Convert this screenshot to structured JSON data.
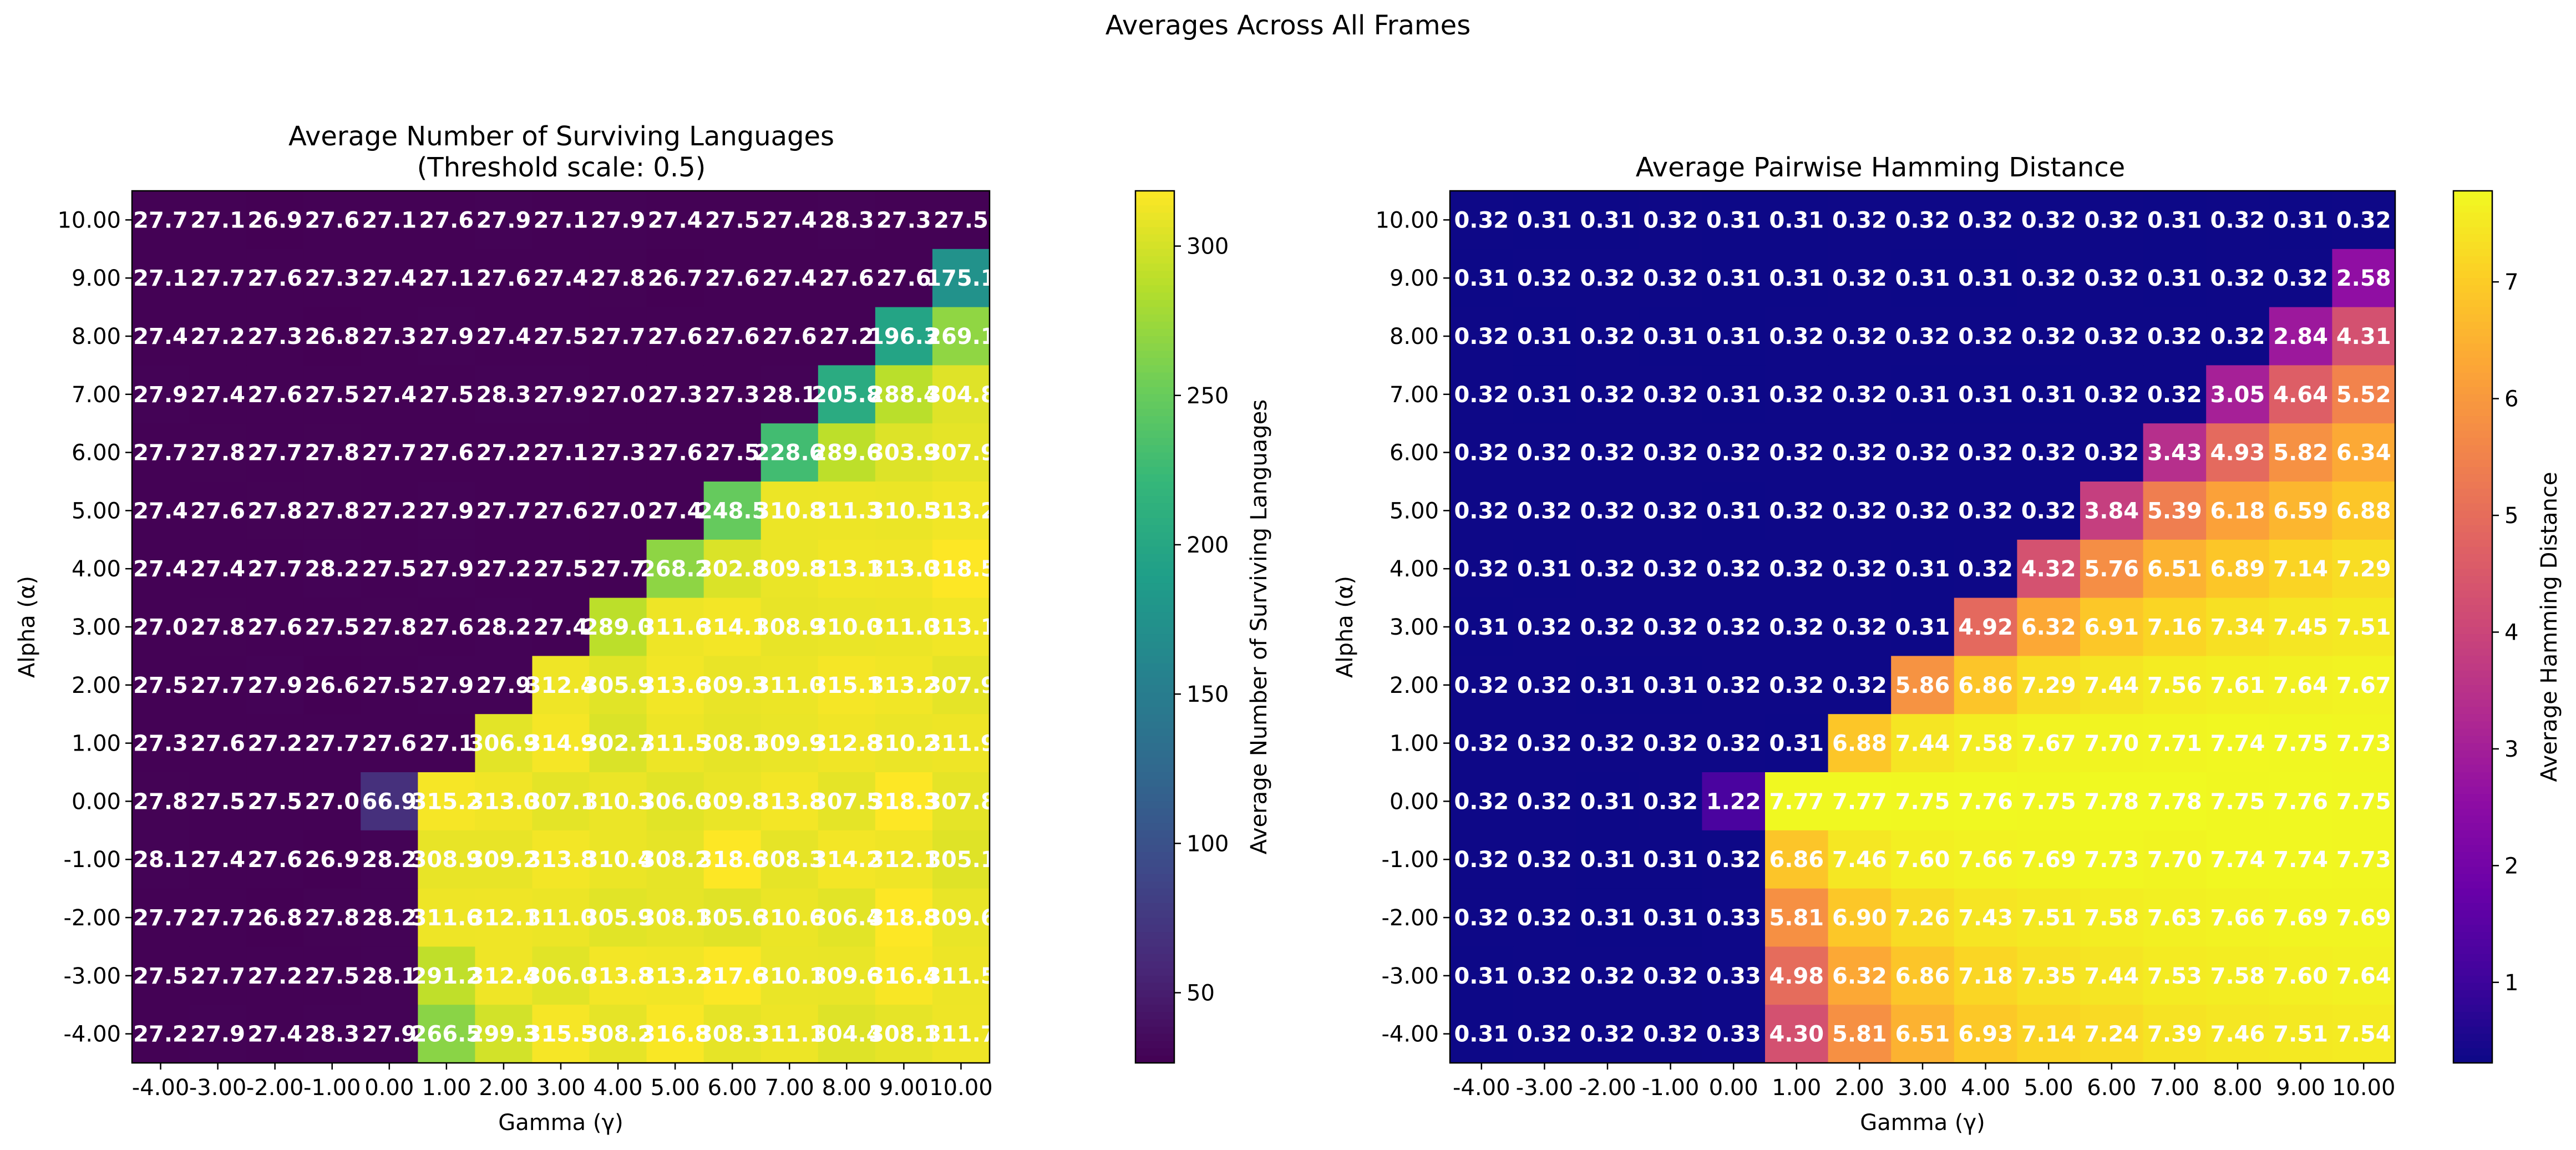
{
  "suptitle": "Averages Across All Frames",
  "chart_data": [
    {
      "type": "heatmap",
      "title": "Average Number of Surviving Languages",
      "subtitle": "(Threshold scale: 0.5)",
      "xlabel": "Gamma (γ)",
      "ylabel": "Alpha (α)",
      "colorbar_label": "Average Number of Surviving Languages",
      "colormap": "viridis",
      "vmin": 26.5,
      "vmax": 318.5,
      "colorbar_ticks": [
        "50",
        "100",
        "150",
        "200",
        "250",
        "300"
      ],
      "colorbar_tick_values": [
        50,
        100,
        150,
        200,
        250,
        300
      ],
      "x_tick_labels": [
        "-4.00",
        "-3.00",
        "-2.00",
        "-1.00",
        "0.00",
        "1.00",
        "2.00",
        "3.00",
        "4.00",
        "5.00",
        "6.00",
        "7.00",
        "8.00",
        "9.00",
        "10.00"
      ],
      "y_tick_labels": [
        "10.00",
        "9.00",
        "8.00",
        "7.00",
        "6.00",
        "5.00",
        "4.00",
        "3.00",
        "2.00",
        "1.00",
        "0.00",
        "-1.00",
        "-2.00",
        "-3.00",
        "-4.00"
      ],
      "decimals": 1,
      "values": [
        [
          27.7,
          27.1,
          26.9,
          27.6,
          27.1,
          27.6,
          27.9,
          27.1,
          27.9,
          27.4,
          27.5,
          27.4,
          28.3,
          27.3,
          27.5
        ],
        [
          27.1,
          27.7,
          27.6,
          27.3,
          27.4,
          27.1,
          27.6,
          27.4,
          27.8,
          26.7,
          27.6,
          27.4,
          27.6,
          27.6,
          175.1
        ],
        [
          27.4,
          27.2,
          27.3,
          26.8,
          27.3,
          27.9,
          27.4,
          27.5,
          27.7,
          27.6,
          27.6,
          27.6,
          27.2,
          196.3,
          269.1
        ],
        [
          27.9,
          27.4,
          27.6,
          27.5,
          27.4,
          27.5,
          28.3,
          27.9,
          27.0,
          27.3,
          27.3,
          28.1,
          205.8,
          288.4,
          304.8
        ],
        [
          27.7,
          27.8,
          27.7,
          27.8,
          27.7,
          27.6,
          27.2,
          27.1,
          27.3,
          27.6,
          27.5,
          228.6,
          289.6,
          303.9,
          307.9
        ],
        [
          27.4,
          27.6,
          27.8,
          27.8,
          27.2,
          27.9,
          27.7,
          27.6,
          27.0,
          27.4,
          248.5,
          310.8,
          311.3,
          310.5,
          313.2
        ],
        [
          27.4,
          27.4,
          27.7,
          28.2,
          27.5,
          27.9,
          27.2,
          27.5,
          27.7,
          268.2,
          302.8,
          309.8,
          313.1,
          313.0,
          318.5
        ],
        [
          27.0,
          27.8,
          27.6,
          27.5,
          27.8,
          27.6,
          28.2,
          27.4,
          289.0,
          311.6,
          314.1,
          308.9,
          310.0,
          311.0,
          313.1
        ],
        [
          27.5,
          27.7,
          27.9,
          26.6,
          27.5,
          27.9,
          27.9,
          312.4,
          305.9,
          313.6,
          309.3,
          311.0,
          315.1,
          313.2,
          307.9
        ],
        [
          27.3,
          27.6,
          27.2,
          27.7,
          27.6,
          27.1,
          306.9,
          314.9,
          302.7,
          311.5,
          308.1,
          309.9,
          312.8,
          310.2,
          311.9
        ],
        [
          27.8,
          27.5,
          27.5,
          27.0,
          66.9,
          315.2,
          313.0,
          307.1,
          310.3,
          306.0,
          309.8,
          313.8,
          307.5,
          318.3,
          307.8
        ],
        [
          28.1,
          27.4,
          27.6,
          26.9,
          28.2,
          308.9,
          309.2,
          313.8,
          310.4,
          308.2,
          318.6,
          308.3,
          314.2,
          312.1,
          305.1
        ],
        [
          27.7,
          27.7,
          26.8,
          27.8,
          28.2,
          311.6,
          312.1,
          311.0,
          305.9,
          308.1,
          305.6,
          310.6,
          306.4,
          318.8,
          309.6
        ],
        [
          27.5,
          27.7,
          27.2,
          27.5,
          28.1,
          291.2,
          312.4,
          306.0,
          313.8,
          313.2,
          317.6,
          310.1,
          309.6,
          316.4,
          311.5
        ],
        [
          27.2,
          27.9,
          27.4,
          28.3,
          27.9,
          266.5,
          299.3,
          315.5,
          308.2,
          316.8,
          308.3,
          311.1,
          304.4,
          308.1,
          311.7
        ]
      ]
    },
    {
      "type": "heatmap",
      "title": "Average Pairwise Hamming Distance",
      "xlabel": "Gamma (γ)",
      "ylabel": "Alpha (α)",
      "colorbar_label": "Average Hamming Distance",
      "colormap": "plasma",
      "vmin": 0.31,
      "vmax": 7.78,
      "colorbar_ticks": [
        "1",
        "2",
        "3",
        "4",
        "5",
        "6",
        "7"
      ],
      "colorbar_tick_values": [
        1,
        2,
        3,
        4,
        5,
        6,
        7
      ],
      "x_tick_labels": [
        "-4.00",
        "-3.00",
        "-2.00",
        "-1.00",
        "0.00",
        "1.00",
        "2.00",
        "3.00",
        "4.00",
        "5.00",
        "6.00",
        "7.00",
        "8.00",
        "9.00",
        "10.00"
      ],
      "y_tick_labels": [
        "10.00",
        "9.00",
        "8.00",
        "7.00",
        "6.00",
        "5.00",
        "4.00",
        "3.00",
        "2.00",
        "1.00",
        "0.00",
        "-1.00",
        "-2.00",
        "-3.00",
        "-4.00"
      ],
      "decimals": 2,
      "values": [
        [
          0.32,
          0.31,
          0.31,
          0.32,
          0.31,
          0.31,
          0.32,
          0.32,
          0.32,
          0.32,
          0.32,
          0.31,
          0.32,
          0.31,
          0.32
        ],
        [
          0.31,
          0.32,
          0.32,
          0.32,
          0.31,
          0.31,
          0.32,
          0.31,
          0.31,
          0.32,
          0.32,
          0.31,
          0.32,
          0.32,
          2.58
        ],
        [
          0.32,
          0.31,
          0.32,
          0.31,
          0.31,
          0.32,
          0.32,
          0.32,
          0.32,
          0.32,
          0.32,
          0.32,
          0.32,
          2.84,
          4.31
        ],
        [
          0.32,
          0.31,
          0.32,
          0.32,
          0.31,
          0.32,
          0.32,
          0.31,
          0.31,
          0.31,
          0.32,
          0.32,
          3.05,
          4.64,
          5.52
        ],
        [
          0.32,
          0.32,
          0.32,
          0.32,
          0.32,
          0.32,
          0.32,
          0.32,
          0.32,
          0.32,
          0.32,
          3.43,
          4.93,
          5.82,
          6.34
        ],
        [
          0.32,
          0.32,
          0.32,
          0.32,
          0.31,
          0.32,
          0.32,
          0.32,
          0.32,
          0.32,
          3.84,
          5.39,
          6.18,
          6.59,
          6.88
        ],
        [
          0.32,
          0.31,
          0.32,
          0.32,
          0.32,
          0.32,
          0.32,
          0.31,
          0.32,
          4.32,
          5.76,
          6.51,
          6.89,
          7.14,
          7.29
        ],
        [
          0.31,
          0.32,
          0.32,
          0.32,
          0.32,
          0.32,
          0.32,
          0.31,
          4.92,
          6.32,
          6.91,
          7.16,
          7.34,
          7.45,
          7.51
        ],
        [
          0.32,
          0.32,
          0.31,
          0.31,
          0.32,
          0.32,
          0.32,
          5.86,
          6.86,
          7.29,
          7.44,
          7.56,
          7.61,
          7.64,
          7.67
        ],
        [
          0.32,
          0.32,
          0.32,
          0.32,
          0.32,
          0.31,
          6.88,
          7.44,
          7.58,
          7.67,
          7.7,
          7.71,
          7.74,
          7.75,
          7.73
        ],
        [
          0.32,
          0.32,
          0.31,
          0.32,
          1.22,
          7.77,
          7.77,
          7.75,
          7.76,
          7.75,
          7.78,
          7.78,
          7.75,
          7.76,
          7.75
        ],
        [
          0.32,
          0.32,
          0.31,
          0.31,
          0.32,
          6.86,
          7.46,
          7.6,
          7.66,
          7.69,
          7.73,
          7.7,
          7.74,
          7.74,
          7.73
        ],
        [
          0.32,
          0.32,
          0.31,
          0.31,
          0.33,
          5.81,
          6.9,
          7.26,
          7.43,
          7.51,
          7.58,
          7.63,
          7.66,
          7.69,
          7.69
        ],
        [
          0.31,
          0.32,
          0.32,
          0.32,
          0.33,
          4.98,
          6.32,
          6.86,
          7.18,
          7.35,
          7.44,
          7.53,
          7.58,
          7.6,
          7.64
        ],
        [
          0.31,
          0.32,
          0.32,
          0.32,
          0.33,
          4.3,
          5.81,
          6.51,
          6.93,
          7.14,
          7.24,
          7.39,
          7.46,
          7.51,
          7.54
        ]
      ]
    }
  ]
}
